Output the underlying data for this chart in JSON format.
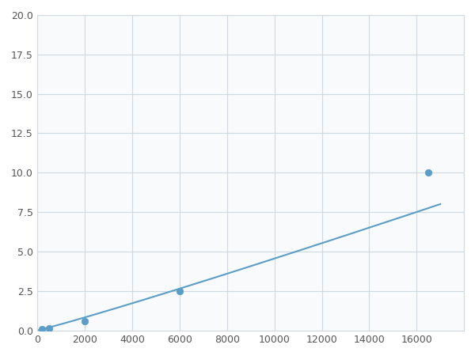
{
  "x_points": [
    200,
    500,
    2000,
    6000,
    16500
  ],
  "y_points": [
    0.1,
    0.15,
    0.6,
    2.5,
    10.0
  ],
  "line_color": "#5b9dc7",
  "marker_color": "#5b9dc7",
  "marker_size": 5,
  "xlim": [
    0,
    18000
  ],
  "ylim": [
    0,
    20
  ],
  "xticks": [
    0,
    2000,
    4000,
    6000,
    8000,
    10000,
    12000,
    14000,
    16000
  ],
  "yticks": [
    0.0,
    2.5,
    5.0,
    7.5,
    10.0,
    12.5,
    15.0,
    17.5,
    20.0
  ],
  "grid_color": "#d0d8e0",
  "background_color": "#f8fafc",
  "figure_background": "#ffffff"
}
